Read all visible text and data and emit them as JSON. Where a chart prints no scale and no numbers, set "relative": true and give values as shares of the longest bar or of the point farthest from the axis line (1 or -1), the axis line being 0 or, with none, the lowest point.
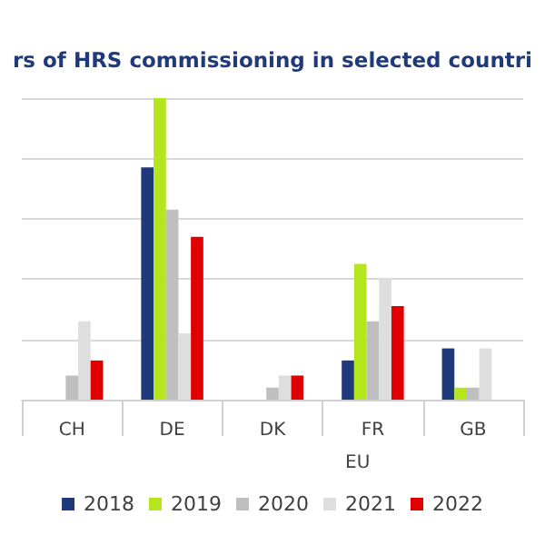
{
  "chart_data": {
    "type": "bar",
    "title": "rs of HRS commissioning in selected countri",
    "relative": true,
    "grid": "y",
    "legend": "bottom",
    "annotations": [
      "EU"
    ],
    "categories": [
      "CH",
      "DE",
      "DK",
      "FR",
      "GB"
    ],
    "series": [
      {
        "name": "2018",
        "color": "#1f3a7a",
        "values": [
          0,
          0.77,
          0,
          0.13,
          0.17
        ]
      },
      {
        "name": "2019",
        "color": "#b5e61d",
        "values": [
          0,
          1,
          0,
          0.45,
          0.04
        ]
      },
      {
        "name": "2020",
        "color": "#bfbfbf",
        "values": [
          0.08,
          0.63,
          0.04,
          0.26,
          0.04
        ]
      },
      {
        "name": "2021",
        "color": "#dedede",
        "values": [
          0.26,
          0.22,
          0.08,
          0.4,
          0.17
        ]
      },
      {
        "name": "2022",
        "color": "#e00000",
        "values": [
          0.13,
          0.54,
          0.08,
          0.31,
          null
        ]
      }
    ]
  }
}
